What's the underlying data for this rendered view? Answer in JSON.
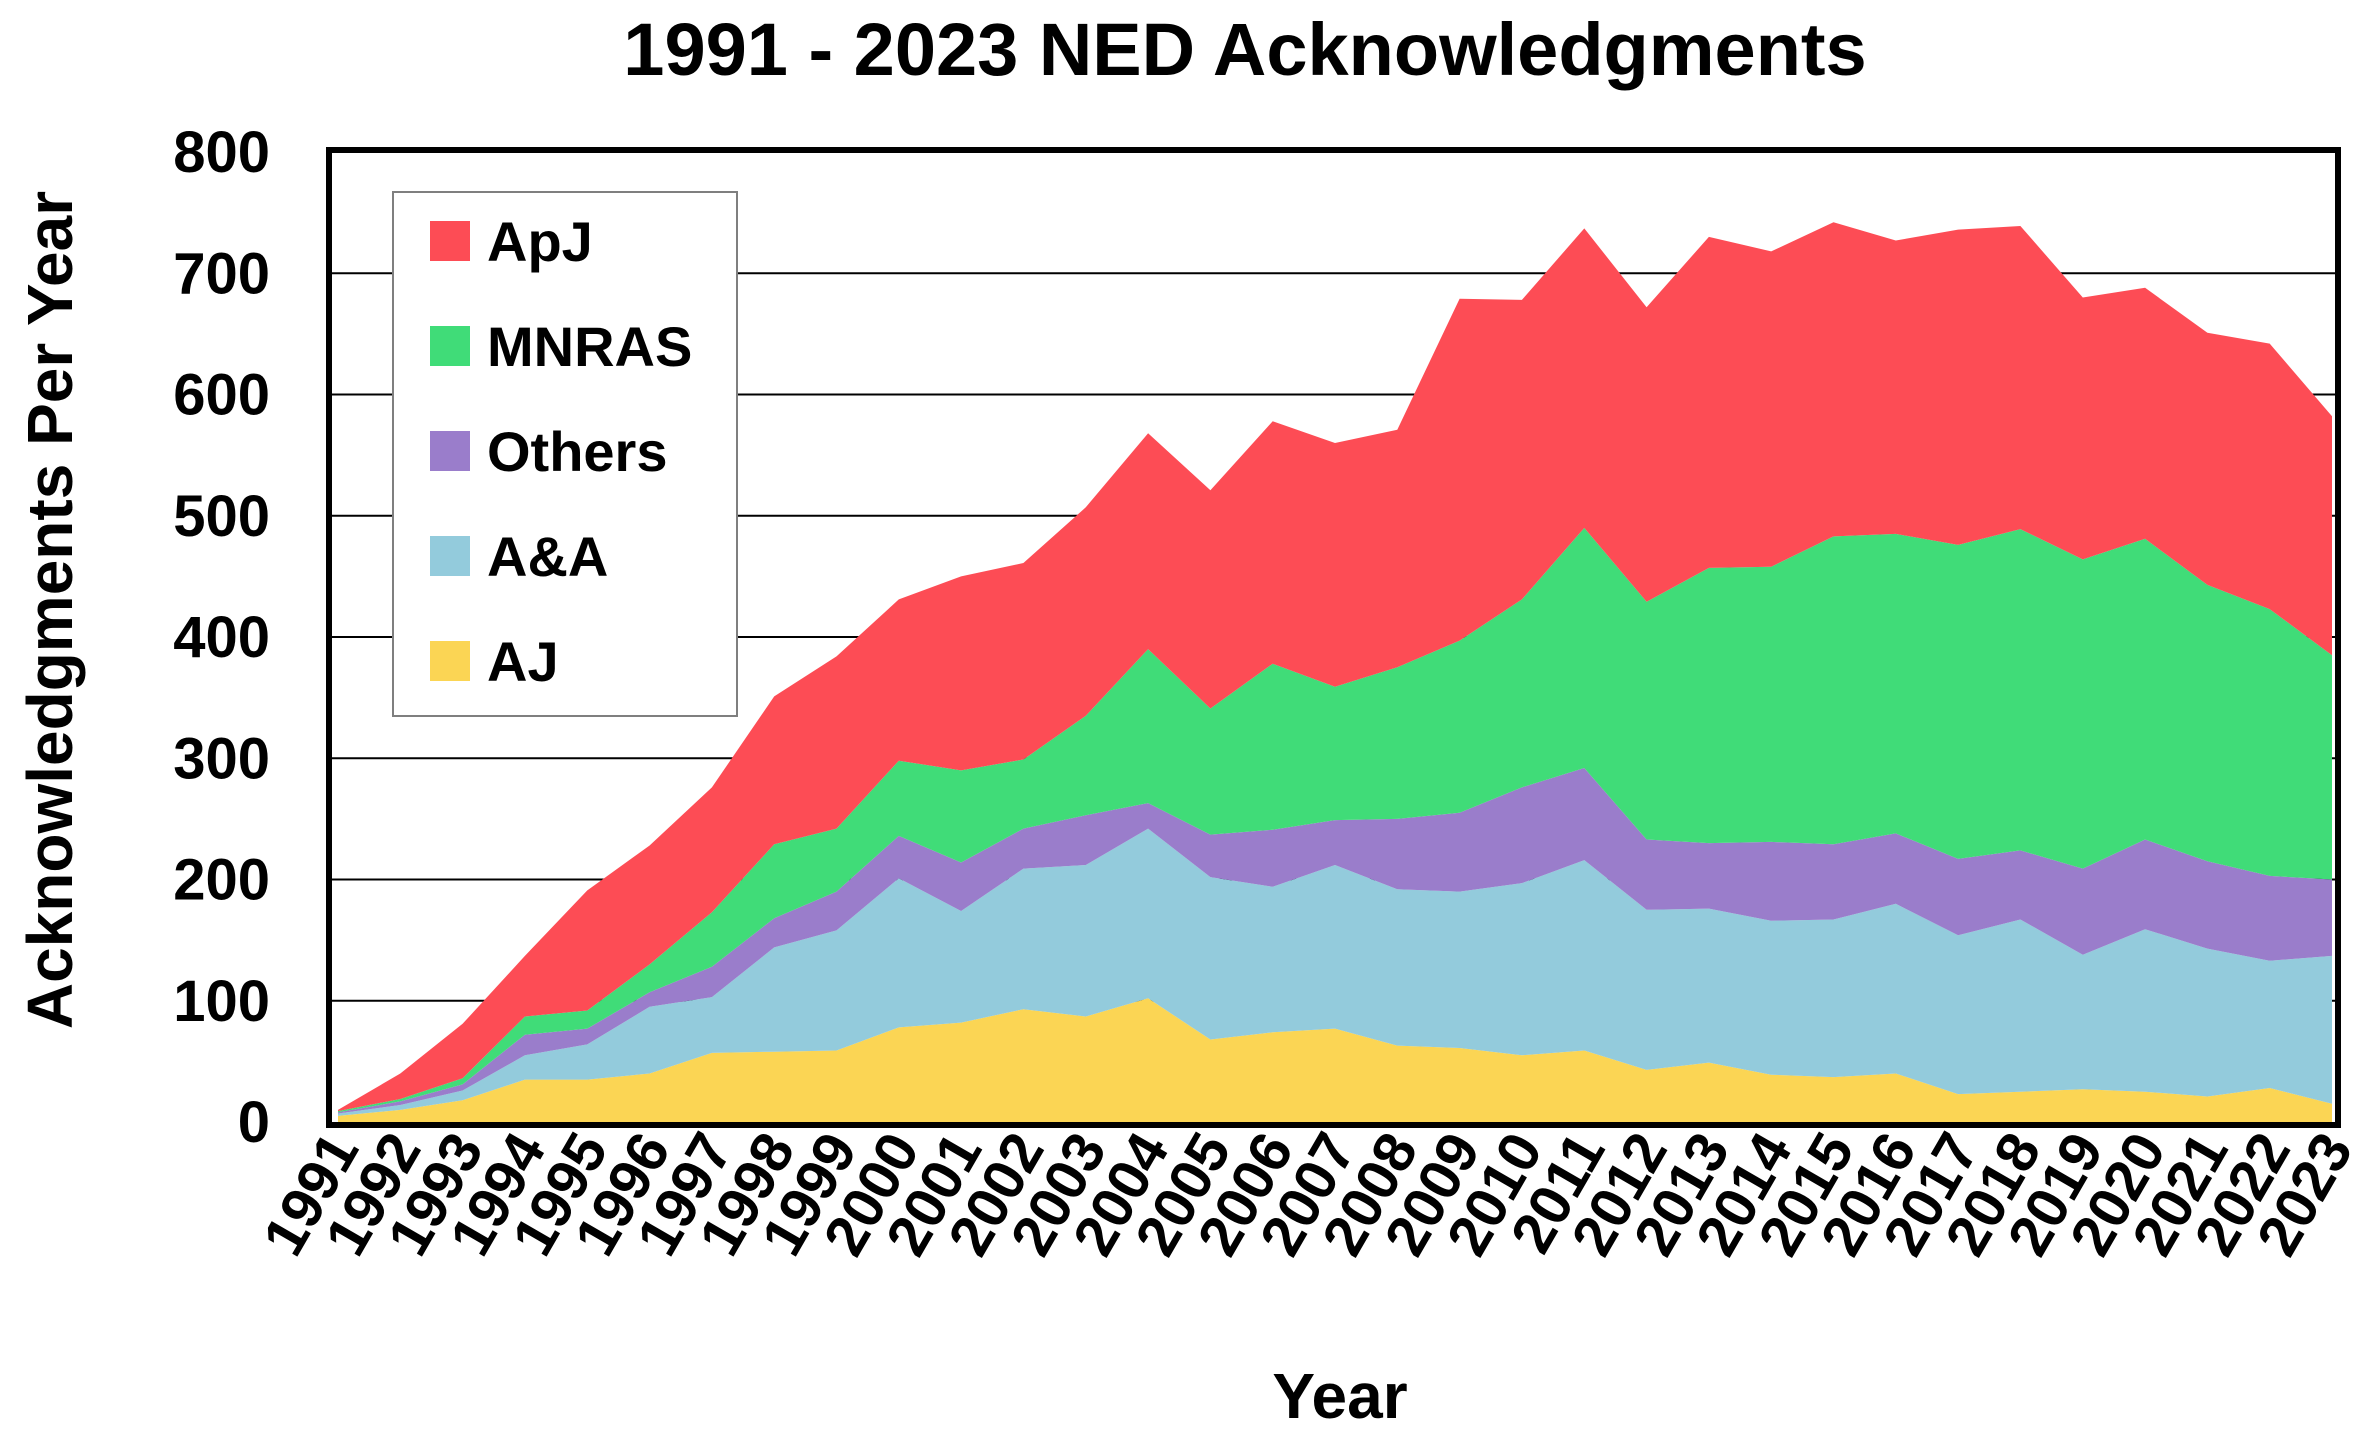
{
  "chart_data": {
    "type": "area",
    "stacked": true,
    "title": "1991 - 2023 NED Acknowledgments",
    "xlabel": "Year",
    "ylabel": "Acknowledgments Per Year",
    "ylim": [
      0,
      800
    ],
    "yticks": [
      0,
      100,
      200,
      300,
      400,
      500,
      600,
      700,
      800
    ],
    "grid": "horizontal",
    "legend_position": "top-left",
    "x": [
      "1991",
      "1992",
      "1993",
      "1994",
      "1995",
      "1996",
      "1997",
      "1998",
      "1999",
      "2000",
      "2001",
      "2002",
      "2003",
      "2004",
      "2005",
      "2006",
      "2007",
      "2008",
      "2009",
      "2010",
      "2011",
      "2012",
      "2013",
      "2014",
      "2015",
      "2016",
      "2017",
      "2018",
      "2019",
      "2020",
      "2021",
      "2022",
      "2023"
    ],
    "series": [
      {
        "name": "AJ",
        "color": "#fbd554",
        "values": [
          5,
          10,
          18,
          35,
          35,
          40,
          57,
          58,
          59,
          78,
          82,
          93,
          87,
          102,
          68,
          74,
          77,
          63,
          61,
          55,
          59,
          43,
          49,
          39,
          37,
          40,
          23,
          25,
          27,
          25,
          21,
          28,
          15
        ]
      },
      {
        "name": "A&A",
        "color": "#93cbdc",
        "values": [
          2,
          4,
          8,
          20,
          29,
          55,
          46,
          86,
          99,
          123,
          92,
          116,
          125,
          140,
          134,
          120,
          135,
          129,
          129,
          142,
          157,
          132,
          127,
          127,
          130,
          140,
          131,
          142,
          111,
          134,
          122,
          105,
          122
        ]
      },
      {
        "name": "Others",
        "color": "#9a7dcb",
        "values": [
          1,
          3,
          5,
          17,
          13,
          12,
          25,
          24,
          32,
          35,
          40,
          33,
          41,
          21,
          35,
          47,
          37,
          58,
          65,
          79,
          76,
          58,
          54,
          65,
          62,
          58,
          63,
          57,
          71,
          74,
          72,
          70,
          63
        ]
      },
      {
        "name": "MNRAS",
        "color": "#40dc78",
        "values": [
          1,
          2,
          5,
          15,
          15,
          23,
          45,
          61,
          52,
          62,
          76,
          57,
          82,
          127,
          104,
          137,
          110,
          125,
          142,
          155,
          198,
          196,
          227,
          227,
          254,
          247,
          259,
          265,
          255,
          248,
          228,
          220,
          185
        ]
      },
      {
        "name": "ApJ",
        "color": "#fd4c55",
        "values": [
          1,
          21,
          45,
          50,
          99,
          98,
          103,
          122,
          142,
          133,
          160,
          162,
          172,
          178,
          180,
          200,
          201,
          196,
          282,
          247,
          247,
          243,
          273,
          260,
          259,
          242,
          260,
          250,
          216,
          207,
          208,
          219,
          197
        ]
      }
    ],
    "legend_order": [
      "ApJ",
      "MNRAS",
      "Others",
      "A&A",
      "AJ"
    ]
  }
}
